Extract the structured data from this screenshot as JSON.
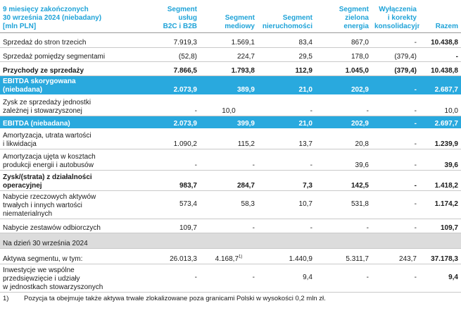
{
  "header": {
    "period": [
      "9 miesięcy zakończonych",
      "30 września 2024 (niebadany)",
      "[mln PLN]"
    ],
    "columns": [
      [
        "Segment",
        "usług",
        "B2C i B2B"
      ],
      [
        "Segment",
        "mediowy"
      ],
      [
        "Segment",
        "nieruchomości"
      ],
      [
        "Segment",
        "zielona",
        "energia"
      ],
      [
        "Wyłączenia",
        "i korekty",
        "konsolidacyjne"
      ],
      [
        "Razem"
      ]
    ]
  },
  "rows": [
    {
      "label": [
        "Sprzedaż do stron trzecich"
      ],
      "values": [
        "7.919,3",
        "1.569,1",
        "83,4",
        "867,0",
        "-",
        "10.438,8"
      ]
    },
    {
      "label": [
        "Sprzedaż pomiędzy segmentami"
      ],
      "values": [
        "(52,8)",
        "224,7",
        "29,5",
        "178,0",
        "(379,4)",
        "-"
      ]
    },
    {
      "label": [
        "Przychody ze sprzedaży"
      ],
      "values": [
        "7.866,5",
        "1.793,8",
        "112,9",
        "1.045,0",
        "(379,4)",
        "10.438,8"
      ]
    },
    {
      "label": [
        "EBITDA skorygowana",
        "(niebadana)"
      ],
      "values": [
        "2.073,9",
        "389,9",
        "21,0",
        "202,9",
        "-",
        "2.687,7"
      ]
    },
    {
      "label": [
        "Zysk ze sprzedaży jednostki",
        "zależnej i stowarzyszonej"
      ],
      "values": [
        "-",
        "10,0",
        "-",
        "-",
        "-",
        "10,0"
      ]
    },
    {
      "label": [
        "EBITDA (niebadana)"
      ],
      "values": [
        "2.073,9",
        "399,9",
        "21,0",
        "202,9",
        "-",
        "2.697,7"
      ]
    },
    {
      "label": [
        "Amortyzacja, utrata wartości",
        "i likwidacja"
      ],
      "values": [
        "1.090,2",
        "115,2",
        "13,7",
        "20,8",
        "-",
        "1.239,9"
      ]
    },
    {
      "label": [
        "Amortyzacja ujęta w kosztach",
        "produkcji energii i autobusów"
      ],
      "values": [
        "-",
        "-",
        "-",
        "39,6",
        "-",
        "39,6"
      ]
    },
    {
      "label": [
        "Zysk/(strata) z działalności",
        "operacyjnej"
      ],
      "values": [
        "983,7",
        "284,7",
        "7,3",
        "142,5",
        "-",
        "1.418,2"
      ]
    },
    {
      "label": [
        "Nabycie rzeczowych aktywów",
        "trwałych i innych wartości",
        "niematerialnych"
      ],
      "values": [
        "573,4",
        "58,3",
        "10,7",
        "531,8",
        "-",
        "1.174,2"
      ]
    },
    {
      "label": [
        "Nabycie zestawów odbiorczych"
      ],
      "values": [
        "109,7",
        "-",
        "-",
        "-",
        "-",
        "109,7"
      ]
    },
    {
      "label": [
        "Na dzień 30 września 2024"
      ],
      "values": [
        "",
        "",
        "",
        "",
        "",
        ""
      ]
    },
    {
      "label": [
        "Aktywa segmentu, w tym:"
      ],
      "values": [
        "26.013,3",
        "4.168,7",
        "1.440,9",
        "5.311,7",
        "243,7",
        "37.178,3"
      ],
      "sup": "1)"
    },
    {
      "label": [
        "Inwestycje we wspólne",
        "przedsięwzięcie i udziały",
        "w jednostkach stowarzyszonych"
      ],
      "values": [
        "-",
        "-",
        "9,4",
        "-",
        "-",
        "9,4"
      ]
    }
  ],
  "footnote": {
    "marker": "1)",
    "text": "Pozycja ta obejmuje także aktywa trwałe zlokalizowane poza granicami Polski w wysokości 0,2 mln zł."
  }
}
